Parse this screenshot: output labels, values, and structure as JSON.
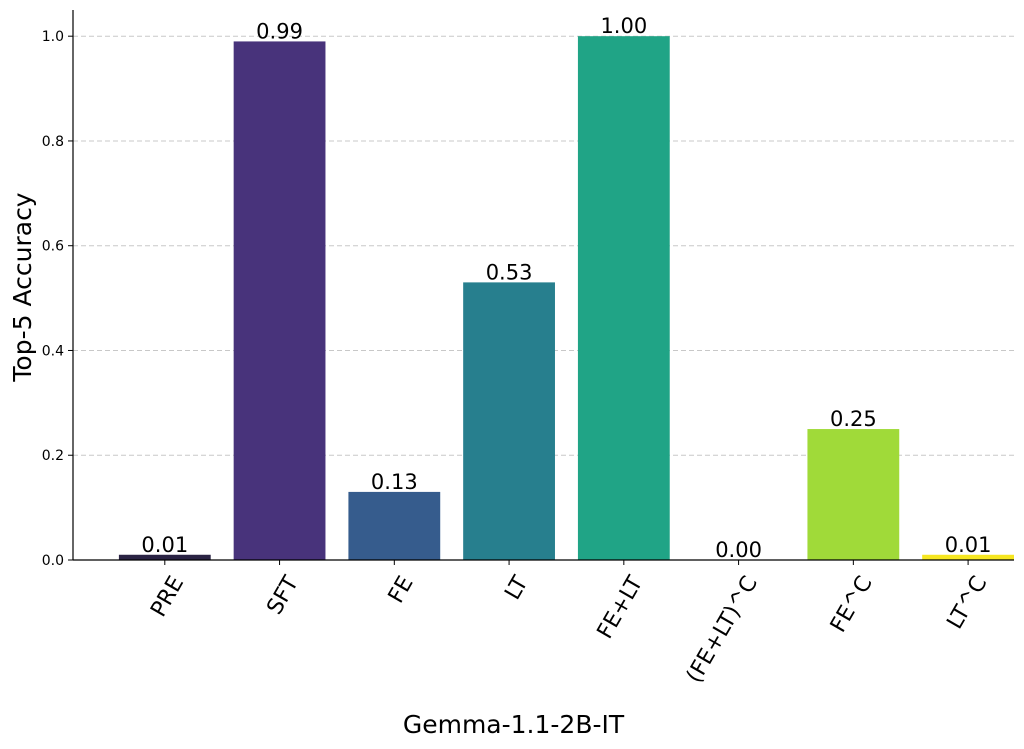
{
  "chart_data": {
    "type": "bar",
    "categories": [
      "PRE",
      "SFT",
      "FE",
      "LT",
      "FE+LT",
      "(FE+LT)^C",
      "FE^C",
      "LT^C"
    ],
    "values": [
      0.01,
      0.99,
      0.13,
      0.53,
      1.0,
      0.0,
      0.25,
      0.01
    ],
    "value_labels": [
      "0.01",
      "0.99",
      "0.13",
      "0.53",
      "1.00",
      "0.00",
      "0.25",
      "0.01"
    ],
    "colors": [
      "#2a2344",
      "#48337b",
      "#365c8d",
      "#277f8e",
      "#20a486",
      "#35b779",
      "#a0da39",
      "#f6e620"
    ],
    "xlabel": "Gemma-1.1-2B-IT",
    "ylabel": "Top-5 Accuracy",
    "ylim": [
      0,
      1.05
    ],
    "yticks": [
      0.0,
      0.2,
      0.4,
      0.6,
      0.8,
      1.0
    ],
    "ytick_labels": [
      "0.0",
      "0.2",
      "0.4",
      "0.6",
      "0.8",
      "1.0"
    ],
    "grid": true,
    "grid_axis": "y"
  }
}
